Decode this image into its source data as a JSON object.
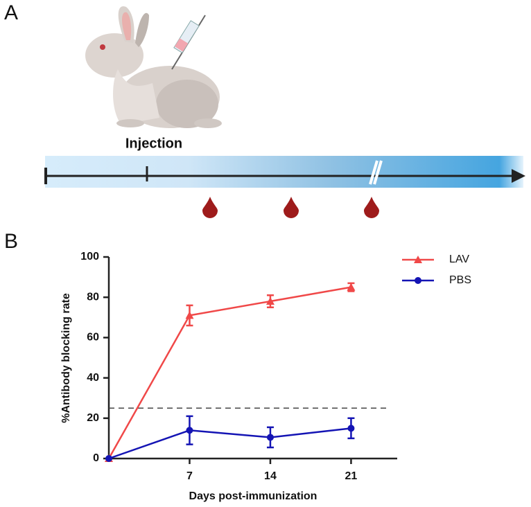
{
  "panels": [
    "A",
    "B"
  ],
  "diagram": {
    "label": "Injection"
  },
  "chart_data": {
    "type": "line",
    "xlabel": "Days post-immunization",
    "ylabel": "%Antibody blocking rate",
    "x": [
      0,
      7,
      14,
      21
    ],
    "series": [
      {
        "name": "LAV",
        "color": "#f04848",
        "marker": "triangle",
        "values": [
          0,
          71,
          78,
          85
        ],
        "errors": [
          0,
          5,
          3,
          2
        ]
      },
      {
        "name": "PBS",
        "color": "#1414b4",
        "marker": "circle",
        "values": [
          0,
          14,
          10.5,
          15
        ],
        "errors": [
          0,
          7,
          5,
          5
        ]
      }
    ],
    "threshold": 25,
    "xlim": [
      0,
      25
    ],
    "xticks": [
      7,
      14,
      21
    ],
    "ylim": [
      0,
      100
    ],
    "yticks": [
      0,
      20,
      40,
      60,
      80,
      100
    ],
    "legend": "upper right"
  }
}
